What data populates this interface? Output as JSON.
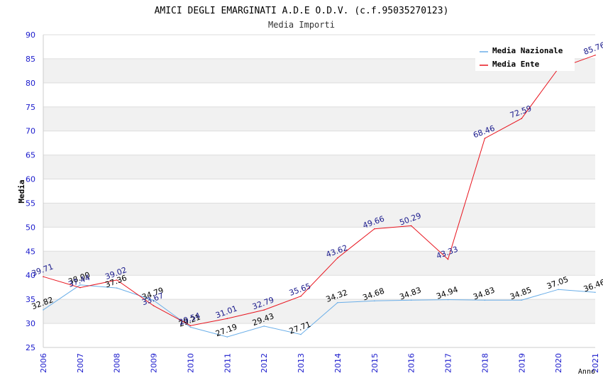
{
  "chart_data": {
    "type": "line",
    "title": "AMICI DEGLI EMARGINATI A.D.E O.D.V. (c.f.95035270123)",
    "subtitle": "Media Importi",
    "xlabel": "Anno",
    "ylabel": "Media",
    "ylim": [
      25,
      90
    ],
    "y_ticks": [
      25,
      30,
      35,
      40,
      45,
      50,
      55,
      60,
      65,
      70,
      75,
      80,
      85,
      90
    ],
    "grid": true,
    "legend_position": "top-right",
    "categories": [
      "2006",
      "2007",
      "2008",
      "2009",
      "2010",
      "2011",
      "2012",
      "2013",
      "2014",
      "2015",
      "2016",
      "2017",
      "2018",
      "2019",
      "2020",
      "2021"
    ],
    "series": [
      {
        "name": "Media Nazionale",
        "color": "#6aaee8",
        "label_color": "#000000",
        "values": [
          32.82,
          38.0,
          37.36,
          34.79,
          29.21,
          27.19,
          29.43,
          27.71,
          34.32,
          34.68,
          34.83,
          34.94,
          34.83,
          34.85,
          37.05,
          36.46
        ],
        "labels": [
          "32.82",
          "38.00",
          "37.36",
          "34.79",
          "29.21",
          "27.19",
          "29.43",
          "27.71",
          "34.32",
          "34.68",
          "34.83",
          "34.94",
          "34.83",
          "34.85",
          "37.05",
          "36.46"
        ]
      },
      {
        "name": "Media Ente",
        "color": "#e8141e",
        "label_color": "#1a1a8c",
        "values": [
          39.71,
          37.44,
          39.02,
          33.67,
          29.54,
          31.01,
          32.79,
          35.65,
          43.62,
          49.66,
          50.29,
          43.33,
          68.46,
          72.59,
          83.0,
          85.76
        ],
        "labels": [
          "39.71",
          "37.44",
          "39.02",
          "33.67",
          "29.54",
          "31.01",
          "32.79",
          "35.65",
          "43.62",
          "49.66",
          "50.29",
          "43.33",
          "68.46",
          "72.59",
          "",
          "85.76"
        ]
      }
    ]
  }
}
